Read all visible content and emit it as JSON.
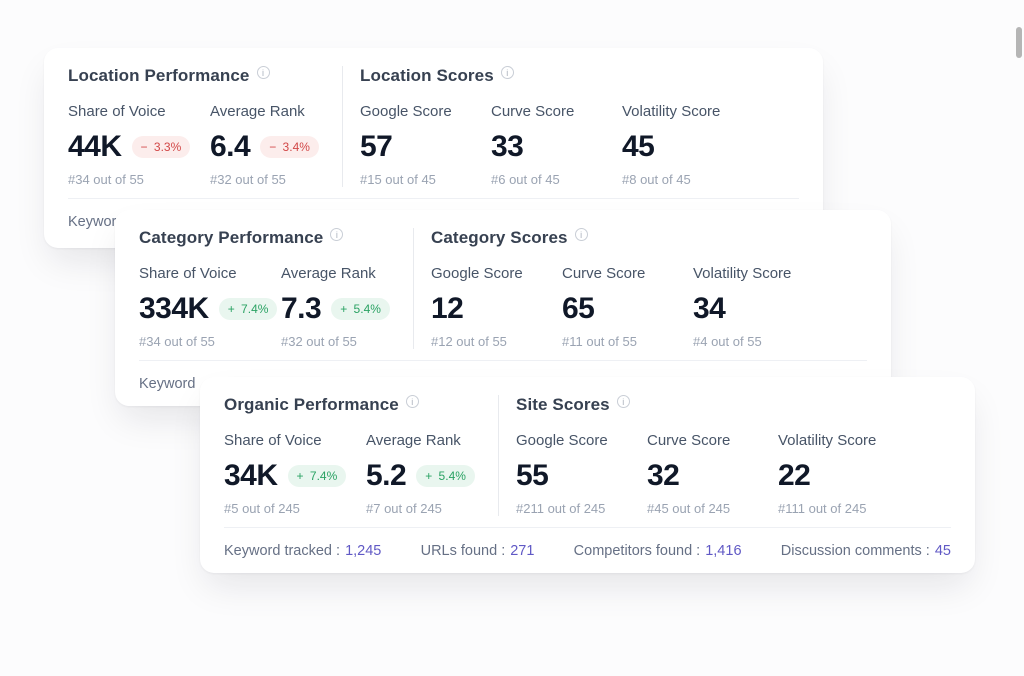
{
  "cards": [
    {
      "performance": {
        "title": "Location Performance",
        "metrics": [
          {
            "label": "Share of Voice",
            "value": "44K",
            "delta": "− 3.3%",
            "trend": "down",
            "rank": "#34 out of 55"
          },
          {
            "label": "Average Rank",
            "value": "6.4",
            "delta": "− 3.4%",
            "trend": "down",
            "rank": "#32 out of 55"
          }
        ]
      },
      "scores": {
        "title": "Location Scores",
        "metrics": [
          {
            "label": "Google Score",
            "value": "57",
            "rank": "#15 out of 45"
          },
          {
            "label": "Curve Score",
            "value": "33",
            "rank": "#6 out of 45"
          },
          {
            "label": "Volatility Score",
            "value": "45",
            "rank": "#8 out of 45"
          }
        ]
      },
      "footer_partial": "Keyword"
    },
    {
      "performance": {
        "title": "Category Performance",
        "metrics": [
          {
            "label": "Share of Voice",
            "value": "334K",
            "delta": "+ 7.4%",
            "trend": "up",
            "rank": "#34 out of 55"
          },
          {
            "label": "Average Rank",
            "value": "7.3",
            "delta": "+ 5.4%",
            "trend": "up",
            "rank": "#32 out of 55"
          }
        ]
      },
      "scores": {
        "title": "Category Scores",
        "metrics": [
          {
            "label": "Google Score",
            "value": "12",
            "rank": "#12 out of 55"
          },
          {
            "label": "Curve Score",
            "value": "65",
            "rank": "#11 out of 55"
          },
          {
            "label": "Volatility Score",
            "value": "34",
            "rank": "#4 out of 55"
          }
        ]
      },
      "footer_partial": "Keyword"
    },
    {
      "performance": {
        "title": "Organic Performance",
        "metrics": [
          {
            "label": "Share of Voice",
            "value": "34K",
            "delta": "+ 7.4%",
            "trend": "up",
            "rank": "#5 out of 245"
          },
          {
            "label": "Average Rank",
            "value": "5.2",
            "delta": "+ 5.4%",
            "trend": "up",
            "rank": "#7 out of 245"
          }
        ]
      },
      "scores": {
        "title": "Site Scores",
        "metrics": [
          {
            "label": "Google Score",
            "value": "55",
            "rank": "#211 out of 245"
          },
          {
            "label": "Curve Score",
            "value": "32",
            "rank": "#45 out of 245"
          },
          {
            "label": "Volatility Score",
            "value": "22",
            "rank": "#111 out of 245"
          }
        ]
      },
      "footer": [
        {
          "label": "Keyword tracked :",
          "value": "1,245"
        },
        {
          "label": "URLs found :",
          "value": "271"
        },
        {
          "label": "Competitors found :",
          "value": "1,416"
        },
        {
          "label": "Discussion comments :",
          "value": "45"
        }
      ]
    }
  ],
  "icons": {
    "info": "i"
  },
  "colors": {
    "accent_purple": "#6059c5",
    "badge_down_text": "#d24848",
    "badge_down_bg": "#fcedec",
    "badge_up_text": "#2aa263",
    "badge_up_bg": "#e9f6ef"
  }
}
